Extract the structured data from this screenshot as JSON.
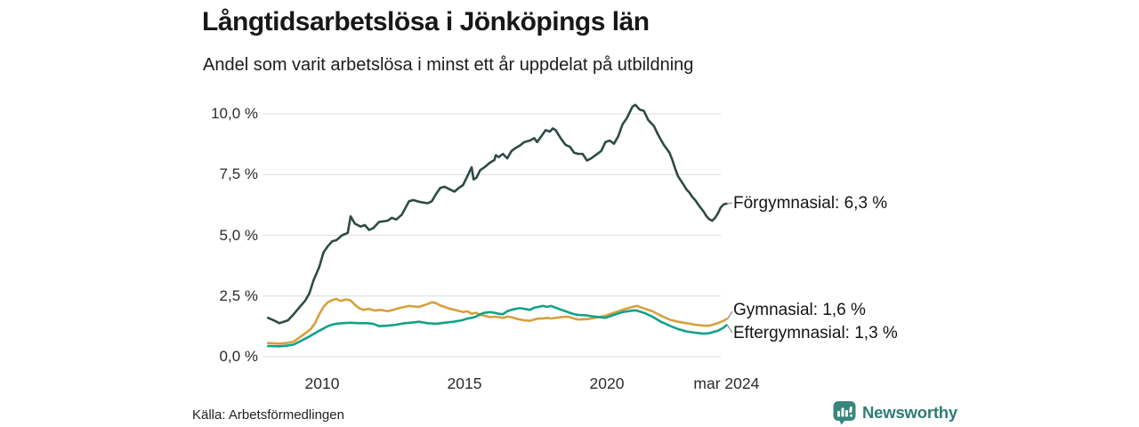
{
  "title": "Långtidsarbetslösa i Jönköpings län",
  "subtitle": "Andel som varit arbetslösa i minst ett år uppdelat på utbildning",
  "source": "Källa: Arbetsförmedlingen",
  "brand": {
    "name": "Newsworthy"
  },
  "colors": {
    "forgymnasial": "#2d4b45",
    "gymnasial": "#d6a03c",
    "eftergymnasial": "#12a189",
    "grid": "#e3e3e3",
    "connector": "#999999",
    "brand": "#2e7c74",
    "text": "#1a1a1a"
  },
  "chart_data": {
    "type": "line",
    "title": "Långtidsarbetslösa i Jönköpings län",
    "subtitle": "Andel som varit arbetslösa i minst ett år uppdelat på utbildning",
    "unit": "%",
    "grid": true,
    "legend_position": "end-of-line-labels",
    "xlim": [
      2008,
      2024.45
    ],
    "ylim": [
      0,
      10.5
    ],
    "x_ticks": [
      {
        "label": "2010",
        "year": 2010
      },
      {
        "label": "2015",
        "year": 2015
      },
      {
        "label": "2020",
        "year": 2020
      },
      {
        "label": "mar 2024",
        "year": 2024.2
      }
    ],
    "y_ticks": [
      {
        "label": "0,0 %",
        "value": 0
      },
      {
        "label": "2,5 %",
        "value": 2.5
      },
      {
        "label": "5,0 %",
        "value": 5
      },
      {
        "label": "7,5 %",
        "value": 7.5
      },
      {
        "label": "10,0 %",
        "value": 10
      }
    ],
    "series": [
      {
        "name": "Förgymnasial",
        "end_label": "Förgymnasial: 6,3 %",
        "end_value": 6.3,
        "color_key": "forgymnasial",
        "points": [
          [
            2008.1,
            1.6
          ],
          [
            2008.3,
            1.5
          ],
          [
            2008.5,
            1.38
          ],
          [
            2008.8,
            1.5
          ],
          [
            2009.0,
            1.75
          ],
          [
            2009.25,
            2.1
          ],
          [
            2009.4,
            2.3
          ],
          [
            2009.55,
            2.6
          ],
          [
            2009.7,
            3.15
          ],
          [
            2009.9,
            3.7
          ],
          [
            2010.05,
            4.3
          ],
          [
            2010.2,
            4.55
          ],
          [
            2010.35,
            4.75
          ],
          [
            2010.5,
            4.8
          ],
          [
            2010.7,
            5.0
          ],
          [
            2010.9,
            5.1
          ],
          [
            2011.0,
            5.78
          ],
          [
            2011.15,
            5.48
          ],
          [
            2011.35,
            5.36
          ],
          [
            2011.5,
            5.42
          ],
          [
            2011.65,
            5.22
          ],
          [
            2011.8,
            5.3
          ],
          [
            2012.0,
            5.55
          ],
          [
            2012.3,
            5.6
          ],
          [
            2012.45,
            5.72
          ],
          [
            2012.6,
            5.65
          ],
          [
            2012.8,
            5.85
          ],
          [
            2013.05,
            6.4
          ],
          [
            2013.2,
            6.45
          ],
          [
            2013.4,
            6.38
          ],
          [
            2013.7,
            6.32
          ],
          [
            2013.85,
            6.4
          ],
          [
            2014.0,
            6.7
          ],
          [
            2014.15,
            6.95
          ],
          [
            2014.3,
            7.0
          ],
          [
            2014.5,
            6.88
          ],
          [
            2014.65,
            6.8
          ],
          [
            2014.8,
            6.95
          ],
          [
            2014.95,
            7.07
          ],
          [
            2015.1,
            7.43
          ],
          [
            2015.25,
            7.8
          ],
          [
            2015.32,
            7.3
          ],
          [
            2015.42,
            7.37
          ],
          [
            2015.55,
            7.68
          ],
          [
            2015.7,
            7.8
          ],
          [
            2015.88,
            7.98
          ],
          [
            2016.05,
            8.1
          ],
          [
            2016.1,
            8.3
          ],
          [
            2016.2,
            8.22
          ],
          [
            2016.35,
            8.35
          ],
          [
            2016.5,
            8.17
          ],
          [
            2016.65,
            8.47
          ],
          [
            2016.8,
            8.6
          ],
          [
            2016.95,
            8.7
          ],
          [
            2017.1,
            8.84
          ],
          [
            2017.3,
            8.9
          ],
          [
            2017.45,
            9.0
          ],
          [
            2017.55,
            8.84
          ],
          [
            2017.7,
            9.08
          ],
          [
            2017.85,
            9.33
          ],
          [
            2018.0,
            9.27
          ],
          [
            2018.1,
            9.4
          ],
          [
            2018.2,
            9.33
          ],
          [
            2018.4,
            8.96
          ],
          [
            2018.55,
            8.72
          ],
          [
            2018.7,
            8.65
          ],
          [
            2018.85,
            8.4
          ],
          [
            2019.0,
            8.35
          ],
          [
            2019.15,
            8.35
          ],
          [
            2019.3,
            8.08
          ],
          [
            2019.45,
            8.17
          ],
          [
            2019.6,
            8.3
          ],
          [
            2019.8,
            8.47
          ],
          [
            2019.95,
            8.84
          ],
          [
            2020.1,
            8.9
          ],
          [
            2020.25,
            8.77
          ],
          [
            2020.4,
            9.08
          ],
          [
            2020.55,
            9.57
          ],
          [
            2020.7,
            9.82
          ],
          [
            2020.9,
            10.3
          ],
          [
            2021.0,
            10.37
          ],
          [
            2021.15,
            10.18
          ],
          [
            2021.3,
            10.12
          ],
          [
            2021.45,
            9.75
          ],
          [
            2021.65,
            9.5
          ],
          [
            2021.8,
            9.14
          ],
          [
            2022.0,
            8.72
          ],
          [
            2022.2,
            8.4
          ],
          [
            2022.3,
            8.1
          ],
          [
            2022.4,
            7.74
          ],
          [
            2022.5,
            7.43
          ],
          [
            2022.6,
            7.25
          ],
          [
            2022.7,
            7.07
          ],
          [
            2022.8,
            6.88
          ],
          [
            2022.9,
            6.76
          ],
          [
            2023.0,
            6.58
          ],
          [
            2023.1,
            6.45
          ],
          [
            2023.25,
            6.2
          ],
          [
            2023.4,
            5.97
          ],
          [
            2023.5,
            5.78
          ],
          [
            2023.6,
            5.66
          ],
          [
            2023.7,
            5.6
          ],
          [
            2023.8,
            5.72
          ],
          [
            2023.9,
            5.9
          ],
          [
            2024.0,
            6.15
          ],
          [
            2024.1,
            6.27
          ],
          [
            2024.2,
            6.3
          ]
        ]
      },
      {
        "name": "Gymnasial",
        "end_label": "Gymnasial: 1,6 %",
        "end_value": 1.6,
        "color_key": "gymnasial",
        "points": [
          [
            2008.1,
            0.56
          ],
          [
            2008.5,
            0.54
          ],
          [
            2008.8,
            0.57
          ],
          [
            2009.0,
            0.62
          ],
          [
            2009.25,
            0.83
          ],
          [
            2009.45,
            1.0
          ],
          [
            2009.6,
            1.14
          ],
          [
            2009.75,
            1.38
          ],
          [
            2009.9,
            1.75
          ],
          [
            2010.05,
            2.05
          ],
          [
            2010.2,
            2.24
          ],
          [
            2010.35,
            2.33
          ],
          [
            2010.5,
            2.38
          ],
          [
            2010.65,
            2.3
          ],
          [
            2010.85,
            2.36
          ],
          [
            2011.0,
            2.32
          ],
          [
            2011.15,
            2.14
          ],
          [
            2011.3,
            2.0
          ],
          [
            2011.45,
            1.93
          ],
          [
            2011.65,
            1.97
          ],
          [
            2011.85,
            1.9
          ],
          [
            2012.05,
            1.93
          ],
          [
            2012.3,
            1.87
          ],
          [
            2012.5,
            1.93
          ],
          [
            2012.7,
            2.0
          ],
          [
            2012.9,
            2.05
          ],
          [
            2013.05,
            2.09
          ],
          [
            2013.4,
            2.05
          ],
          [
            2013.7,
            2.17
          ],
          [
            2013.85,
            2.24
          ],
          [
            2014.0,
            2.21
          ],
          [
            2014.15,
            2.11
          ],
          [
            2014.3,
            2.05
          ],
          [
            2014.5,
            1.97
          ],
          [
            2014.65,
            1.93
          ],
          [
            2014.95,
            1.84
          ],
          [
            2015.1,
            1.87
          ],
          [
            2015.25,
            1.77
          ],
          [
            2015.4,
            1.81
          ],
          [
            2015.55,
            1.72
          ],
          [
            2015.7,
            1.69
          ],
          [
            2015.9,
            1.63
          ],
          [
            2016.05,
            1.65
          ],
          [
            2016.2,
            1.63
          ],
          [
            2016.35,
            1.6
          ],
          [
            2016.5,
            1.65
          ],
          [
            2016.65,
            1.63
          ],
          [
            2016.8,
            1.57
          ],
          [
            2016.95,
            1.53
          ],
          [
            2017.1,
            1.5
          ],
          [
            2017.3,
            1.48
          ],
          [
            2017.45,
            1.53
          ],
          [
            2017.6,
            1.57
          ],
          [
            2017.75,
            1.57
          ],
          [
            2017.9,
            1.6
          ],
          [
            2018.05,
            1.57
          ],
          [
            2018.2,
            1.6
          ],
          [
            2018.4,
            1.63
          ],
          [
            2018.55,
            1.65
          ],
          [
            2018.7,
            1.63
          ],
          [
            2018.85,
            1.57
          ],
          [
            2019.0,
            1.53
          ],
          [
            2019.3,
            1.55
          ],
          [
            2019.6,
            1.6
          ],
          [
            2019.95,
            1.69
          ],
          [
            2020.25,
            1.81
          ],
          [
            2020.55,
            1.93
          ],
          [
            2020.9,
            2.05
          ],
          [
            2021.05,
            2.09
          ],
          [
            2021.3,
            1.99
          ],
          [
            2021.6,
            1.87
          ],
          [
            2021.9,
            1.69
          ],
          [
            2022.2,
            1.53
          ],
          [
            2022.5,
            1.44
          ],
          [
            2022.8,
            1.38
          ],
          [
            2023.1,
            1.32
          ],
          [
            2023.4,
            1.28
          ],
          [
            2023.6,
            1.28
          ],
          [
            2023.9,
            1.38
          ],
          [
            2024.1,
            1.48
          ],
          [
            2024.2,
            1.55
          ]
        ]
      },
      {
        "name": "Eftergymnasial",
        "end_label": "Eftergymnasial: 1,3 %",
        "end_value": 1.3,
        "color_key": "eftergymnasial",
        "points": [
          [
            2008.1,
            0.44
          ],
          [
            2008.5,
            0.43
          ],
          [
            2008.8,
            0.46
          ],
          [
            2009.0,
            0.5
          ],
          [
            2009.25,
            0.65
          ],
          [
            2009.55,
            0.83
          ],
          [
            2009.9,
            1.07
          ],
          [
            2010.05,
            1.16
          ],
          [
            2010.2,
            1.26
          ],
          [
            2010.35,
            1.32
          ],
          [
            2010.5,
            1.36
          ],
          [
            2010.7,
            1.38
          ],
          [
            2011.0,
            1.4
          ],
          [
            2011.3,
            1.38
          ],
          [
            2011.6,
            1.38
          ],
          [
            2011.8,
            1.35
          ],
          [
            2012.0,
            1.26
          ],
          [
            2012.3,
            1.28
          ],
          [
            2012.6,
            1.32
          ],
          [
            2012.9,
            1.38
          ],
          [
            2013.1,
            1.4
          ],
          [
            2013.4,
            1.44
          ],
          [
            2013.7,
            1.38
          ],
          [
            2014.0,
            1.36
          ],
          [
            2014.3,
            1.4
          ],
          [
            2014.6,
            1.44
          ],
          [
            2014.9,
            1.5
          ],
          [
            2015.1,
            1.57
          ],
          [
            2015.25,
            1.6
          ],
          [
            2015.4,
            1.65
          ],
          [
            2015.55,
            1.75
          ],
          [
            2015.7,
            1.81
          ],
          [
            2015.9,
            1.84
          ],
          [
            2016.05,
            1.81
          ],
          [
            2016.2,
            1.77
          ],
          [
            2016.35,
            1.75
          ],
          [
            2016.5,
            1.87
          ],
          [
            2016.65,
            1.93
          ],
          [
            2016.8,
            1.97
          ],
          [
            2016.95,
            2.0
          ],
          [
            2017.1,
            1.97
          ],
          [
            2017.3,
            1.93
          ],
          [
            2017.45,
            2.02
          ],
          [
            2017.6,
            2.05
          ],
          [
            2017.75,
            2.09
          ],
          [
            2017.9,
            2.05
          ],
          [
            2018.05,
            2.09
          ],
          [
            2018.2,
            2.02
          ],
          [
            2018.4,
            1.93
          ],
          [
            2018.55,
            1.87
          ],
          [
            2018.7,
            1.81
          ],
          [
            2018.85,
            1.75
          ],
          [
            2019.0,
            1.72
          ],
          [
            2019.3,
            1.7
          ],
          [
            2019.6,
            1.65
          ],
          [
            2019.95,
            1.6
          ],
          [
            2020.25,
            1.72
          ],
          [
            2020.55,
            1.84
          ],
          [
            2020.9,
            1.9
          ],
          [
            2021.05,
            1.9
          ],
          [
            2021.3,
            1.81
          ],
          [
            2021.6,
            1.65
          ],
          [
            2021.9,
            1.44
          ],
          [
            2022.2,
            1.28
          ],
          [
            2022.5,
            1.14
          ],
          [
            2022.8,
            1.04
          ],
          [
            2023.1,
            0.99
          ],
          [
            2023.4,
            0.95
          ],
          [
            2023.6,
            0.97
          ],
          [
            2023.9,
            1.07
          ],
          [
            2024.1,
            1.2
          ],
          [
            2024.2,
            1.3
          ]
        ]
      }
    ]
  }
}
